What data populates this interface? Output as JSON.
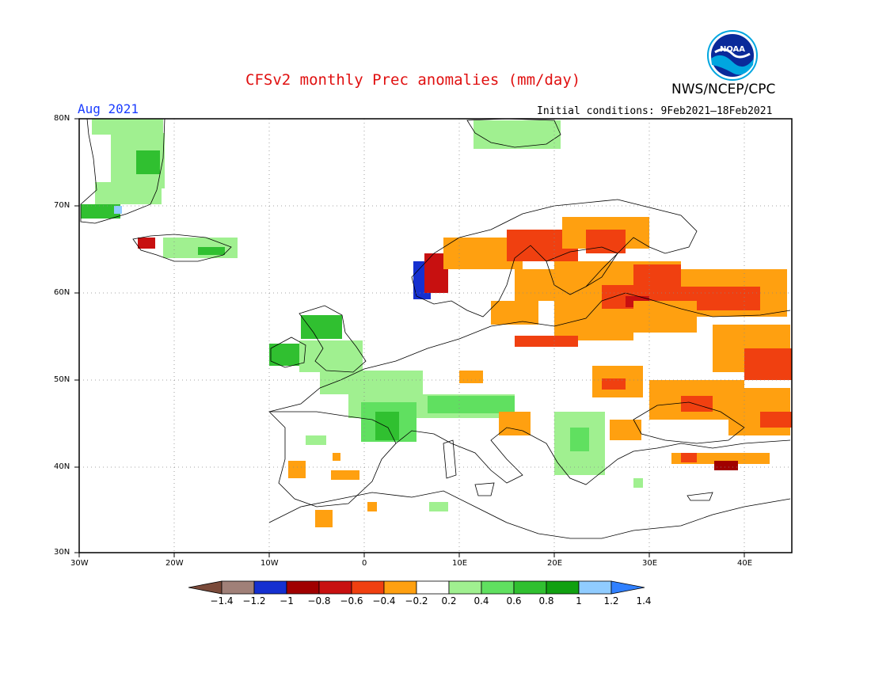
{
  "title": "CFSv2 monthly Prec anomalies (mm/day)",
  "org": "NWS/NCEP/CPC",
  "logo_text": "NOAA",
  "period": "Aug 2021",
  "initial_conditions": "Initial conditions: 9Feb2021–18Feb2021",
  "lat_labels": [
    "80N",
    "70N",
    "60N",
    "50N",
    "40N",
    "30N"
  ],
  "lon_labels": [
    "30W",
    "20W",
    "10W",
    "0",
    "10E",
    "20E",
    "30E",
    "40E"
  ],
  "colorbar": {
    "labels": [
      "−1.4",
      "−1.2",
      "−1",
      "−0.8",
      "−0.6",
      "−0.4",
      "−0.2",
      "0.2",
      "0.4",
      "0.6",
      "0.8",
      "1",
      "1.2",
      "1.4"
    ],
    "colors": [
      "#7a4a3a",
      "#a08078",
      "#1530d0",
      "#a00000",
      "#c81010",
      "#f04010",
      "#ffa010",
      "#ffffff",
      "#a0f090",
      "#60e060",
      "#30c030",
      "#10a010",
      "#90ccff",
      "#3080ff"
    ]
  },
  "colors": {
    "title": "#e01010",
    "period": "#1a3cff",
    "land_outline": "#000000",
    "grid": "#888888"
  }
}
